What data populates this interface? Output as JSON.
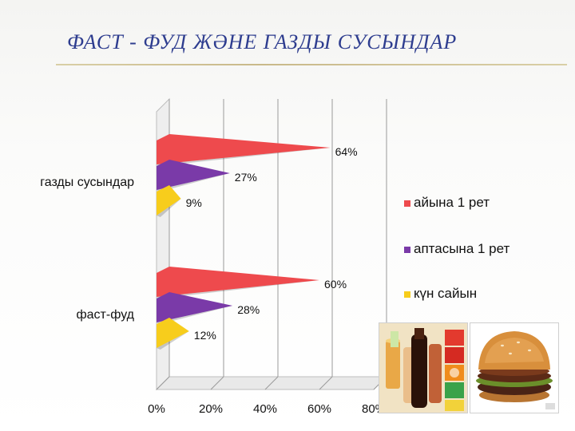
{
  "slide": {
    "title": "ФАСТ - ФУД  ЖӘНЕ ГАЗДЫ СУСЫНДАР"
  },
  "chart_data": {
    "type": "bar",
    "orientation": "horizontal",
    "three_d": true,
    "categories": [
      "газды сусындар",
      "фаст-фуд"
    ],
    "series": [
      {
        "name": "айына 1 рет",
        "color": "#ee4a4d",
        "values": [
          64,
          60
        ],
        "labels": [
          "64%",
          "60%"
        ]
      },
      {
        "name": "аптасына 1 рет",
        "color": "#7a3aa8",
        "values": [
          27,
          28
        ],
        "labels": [
          "27%",
          "28%"
        ]
      },
      {
        "name": "күн сайын",
        "color": "#f7cd1c",
        "values": [
          9,
          12
        ],
        "labels": [
          "9%",
          "12%"
        ]
      }
    ],
    "xlim": [
      0,
      80
    ],
    "xticks": [
      "0%",
      "20%",
      "40%",
      "60%",
      "80%"
    ],
    "grid": true,
    "legend_position": "right"
  },
  "icons": {
    "drinks": "soda-bottles-photo",
    "burger": "hamburger-photo"
  }
}
